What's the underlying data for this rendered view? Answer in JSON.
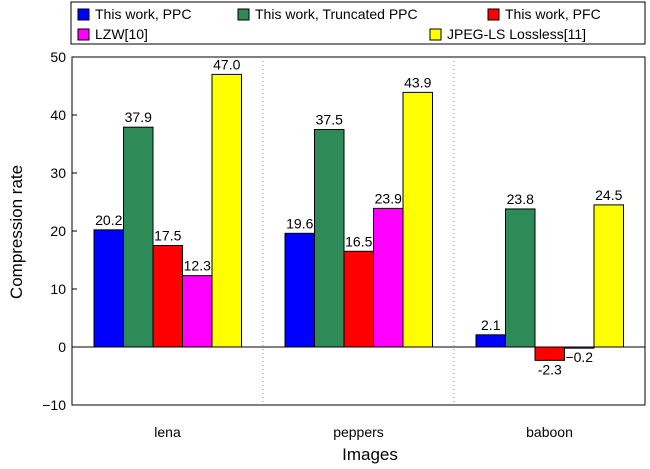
{
  "chart_data": {
    "type": "bar",
    "xlabel": "Images",
    "ylabel": "Compression rate",
    "ylim": [
      -10,
      50
    ],
    "yticks": [
      -10,
      0,
      10,
      20,
      30,
      40,
      50
    ],
    "categories": [
      "lena",
      "peppers",
      "baboon"
    ],
    "legend_position": "top",
    "series": [
      {
        "name": "This work, PPC",
        "color": "#0000ff",
        "values": [
          20.2,
          19.6,
          2.1
        ],
        "labels": [
          "20.2",
          "19.6",
          "2.1"
        ]
      },
      {
        "name": "This work, Truncated PPC",
        "color": "#2e8b57",
        "values": [
          37.9,
          37.5,
          23.8
        ],
        "labels": [
          "37.9",
          "37.5",
          "23.8"
        ]
      },
      {
        "name": "This work, PFC",
        "color": "#ff0000",
        "values": [
          17.5,
          16.5,
          -2.3
        ],
        "labels": [
          "17.5",
          "16.5",
          "-2.3"
        ]
      },
      {
        "name": "LZW[10]",
        "color": "#ff00ff",
        "values": [
          12.3,
          23.9,
          -0.2
        ],
        "labels": [
          "12.3",
          "23.9",
          "−0.2"
        ]
      },
      {
        "name": "JPEG-LS Lossless[11]",
        "color": "#ffff00",
        "values": [
          47.0,
          43.9,
          24.5
        ],
        "labels": [
          "47.0",
          "43.9",
          "24.5"
        ]
      }
    ]
  }
}
